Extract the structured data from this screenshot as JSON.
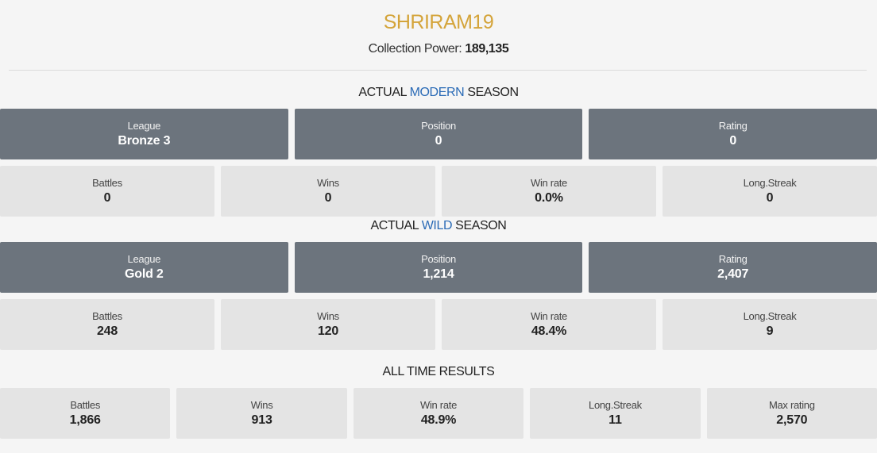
{
  "player": {
    "name": "SHRIRAM19",
    "collection_power_label": "Collection Power:",
    "collection_power_value": "189,135"
  },
  "modern": {
    "title_prefix": "ACTUAL",
    "title_accent": "MODERN",
    "title_suffix": "SEASON",
    "league": {
      "label": "League",
      "value": "Bronze 3"
    },
    "position": {
      "label": "Position",
      "value": "0"
    },
    "rating": {
      "label": "Rating",
      "value": "0"
    },
    "battles": {
      "label": "Battles",
      "value": "0"
    },
    "wins": {
      "label": "Wins",
      "value": "0"
    },
    "win_rate": {
      "label": "Win rate",
      "value": "0.0%"
    },
    "long_streak": {
      "label": "Long.Streak",
      "value": "0"
    }
  },
  "wild": {
    "title_prefix": "ACTUAL",
    "title_accent": "WILD",
    "title_suffix": "SEASON",
    "league": {
      "label": "League",
      "value": "Gold 2"
    },
    "position": {
      "label": "Position",
      "value": "1,214"
    },
    "rating": {
      "label": "Rating",
      "value": "2,407"
    },
    "battles": {
      "label": "Battles",
      "value": "248"
    },
    "wins": {
      "label": "Wins",
      "value": "120"
    },
    "win_rate": {
      "label": "Win rate",
      "value": "48.4%"
    },
    "long_streak": {
      "label": "Long.Streak",
      "value": "9"
    }
  },
  "all_time": {
    "title": "ALL TIME RESULTS",
    "battles": {
      "label": "Battles",
      "value": "1,866"
    },
    "wins": {
      "label": "Wins",
      "value": "913"
    },
    "win_rate": {
      "label": "Win rate",
      "value": "48.9%"
    },
    "long_streak": {
      "label": "Long.Streak",
      "value": "11"
    },
    "max_rating": {
      "label": "Max rating",
      "value": "2,570"
    }
  },
  "colors": {
    "name_gold": "#d4a43a",
    "accent_blue": "#2b6bb6",
    "card_dark": "#6c747d",
    "card_light": "#e4e4e4"
  }
}
